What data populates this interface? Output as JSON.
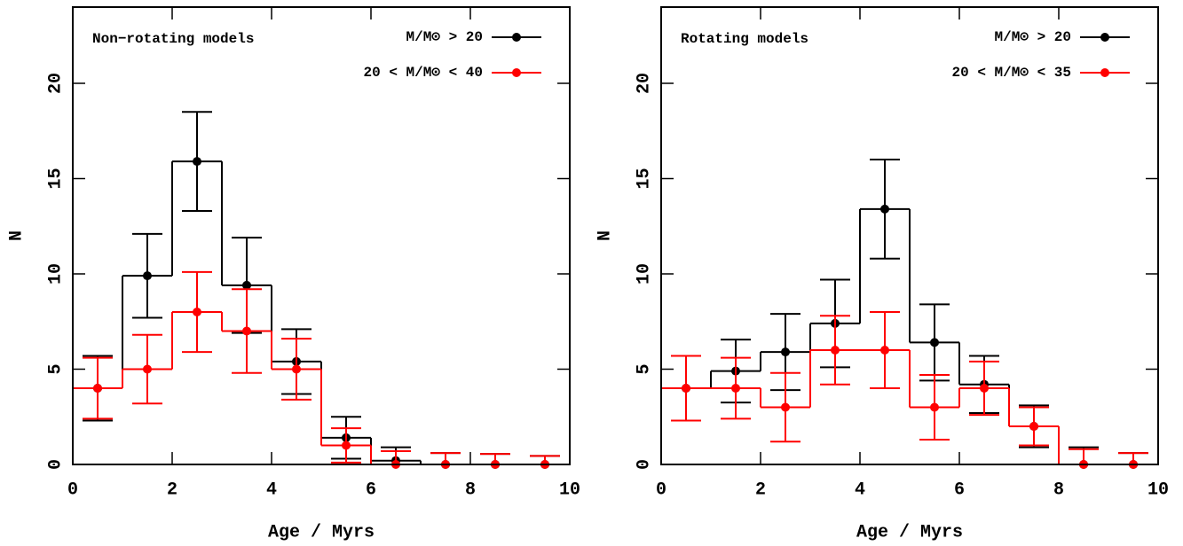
{
  "chart_data": [
    {
      "type": "histogram",
      "annotation": "Non−rotating models",
      "xlabel": "Age / Myrs",
      "ylabel": "N",
      "bins": [
        0,
        1,
        2,
        3,
        4,
        5,
        6,
        7,
        8,
        9,
        10
      ],
      "series": [
        {
          "name": "M/M⊙ > 20",
          "color": "#000000",
          "values": [
            4,
            9.9,
            15.9,
            9.4,
            5.4,
            1.4,
            0.2,
            0,
            0,
            0
          ],
          "errors": [
            1.7,
            2.2,
            2.6,
            2.5,
            1.7,
            1.1,
            0.7,
            0.6,
            0.55,
            0.45
          ]
        },
        {
          "name": "20 < M/M⊙ < 40",
          "color": "#ff0000",
          "values": [
            4,
            5,
            8,
            7,
            5,
            1,
            0,
            0,
            0,
            0
          ],
          "errors": [
            1.6,
            1.8,
            2.1,
            2.2,
            1.6,
            0.9,
            0.7,
            0.6,
            0.55,
            0.45
          ]
        }
      ],
      "xlim": [
        0,
        10
      ],
      "ylim": [
        0,
        24
      ],
      "xticks": [
        0,
        2,
        4,
        6,
        8,
        10
      ],
      "yticks": [
        0,
        5,
        10,
        15,
        20
      ]
    },
    {
      "type": "histogram",
      "annotation": "Rotating models",
      "xlabel": "Age / Myrs",
      "ylabel": "N",
      "bins": [
        0,
        1,
        2,
        3,
        4,
        5,
        6,
        7,
        8,
        9,
        10
      ],
      "series": [
        {
          "name": "M/M⊙ > 20",
          "color": "#000000",
          "values": [
            4,
            4.9,
            5.9,
            7.4,
            13.4,
            6.4,
            4.2,
            2,
            0,
            0
          ],
          "errors": [
            1.7,
            1.65,
            2,
            2.3,
            2.6,
            2,
            1.5,
            1.1,
            0.9,
            0.6
          ]
        },
        {
          "name": "20 < M/M⊙ < 35",
          "color": "#ff0000",
          "values": [
            4,
            4,
            3,
            6,
            6,
            3,
            4,
            2,
            0,
            0
          ],
          "errors": [
            1.7,
            1.6,
            1.8,
            1.8,
            2,
            1.7,
            1.4,
            1,
            0.8,
            0.6
          ]
        }
      ],
      "xlim": [
        0,
        10
      ],
      "ylim": [
        0,
        24
      ],
      "xticks": [
        0,
        2,
        4,
        6,
        8,
        10
      ],
      "yticks": [
        0,
        5,
        10,
        15,
        20
      ]
    }
  ]
}
